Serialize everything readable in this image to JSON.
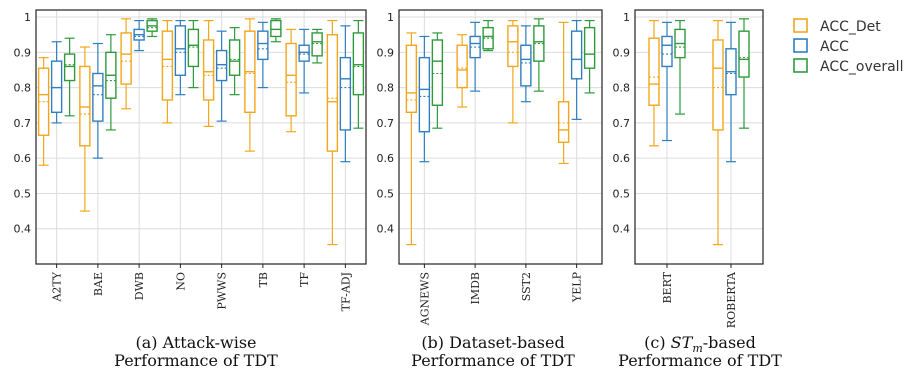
{
  "colors": {
    "ACC_Det": "#f2a71b",
    "ACC": "#2f7fc1",
    "ACC_overall": "#2e9a3b"
  },
  "legend": [
    "ACC_Det",
    "ACC",
    "ACC_overall"
  ],
  "chart_data": [
    {
      "type": "boxplot",
      "ylim": [
        0.3,
        1.02
      ],
      "yticks": [
        0.4,
        0.5,
        0.6,
        0.7,
        0.8,
        0.9,
        1
      ],
      "caption_line1": "(a) Attack-wise",
      "caption_line2": "Performance of TDT",
      "categories": [
        "A2TY",
        "BAE",
        "DWB",
        "NO",
        "PWWS",
        "TB",
        "TF",
        "TF-ADJ"
      ],
      "series": [
        {
          "name": "ACC_Det",
          "boxes": [
            {
              "min": 0.58,
              "q1": 0.665,
              "median": 0.78,
              "q3": 0.855,
              "max": 0.885,
              "mean": 0.76
            },
            {
              "min": 0.45,
              "q1": 0.635,
              "median": 0.745,
              "q3": 0.86,
              "max": 0.915,
              "mean": 0.725
            },
            {
              "min": 0.74,
              "q1": 0.81,
              "median": 0.895,
              "q3": 0.955,
              "max": 0.995,
              "mean": 0.875
            },
            {
              "min": 0.7,
              "q1": 0.765,
              "median": 0.88,
              "q3": 0.96,
              "max": 0.99,
              "mean": 0.86
            },
            {
              "min": 0.69,
              "q1": 0.765,
              "median": 0.845,
              "q3": 0.935,
              "max": 0.99,
              "mean": 0.835
            },
            {
              "min": 0.62,
              "q1": 0.73,
              "median": 0.845,
              "q3": 0.96,
              "max": 0.995,
              "mean": 0.84
            },
            {
              "min": 0.675,
              "q1": 0.72,
              "median": 0.835,
              "q3": 0.925,
              "max": 0.965,
              "mean": 0.815
            },
            {
              "min": 0.355,
              "q1": 0.62,
              "median": 0.76,
              "q3": 0.95,
              "max": 0.99,
              "mean": 0.77
            }
          ]
        },
        {
          "name": "ACC",
          "boxes": [
            {
              "min": 0.7,
              "q1": 0.73,
              "median": 0.8,
              "q3": 0.875,
              "max": 0.93,
              "mean": 0.8
            },
            {
              "min": 0.6,
              "q1": 0.705,
              "median": 0.805,
              "q3": 0.84,
              "max": 0.925,
              "mean": 0.78
            },
            {
              "min": 0.905,
              "q1": 0.935,
              "median": 0.95,
              "q3": 0.965,
              "max": 0.99,
              "mean": 0.945
            },
            {
              "min": 0.78,
              "q1": 0.835,
              "median": 0.91,
              "q3": 0.975,
              "max": 0.99,
              "mean": 0.9
            },
            {
              "min": 0.705,
              "q1": 0.82,
              "median": 0.865,
              "q3": 0.905,
              "max": 0.96,
              "mean": 0.855
            },
            {
              "min": 0.8,
              "q1": 0.88,
              "median": 0.925,
              "q3": 0.96,
              "max": 0.985,
              "mean": 0.91
            },
            {
              "min": 0.785,
              "q1": 0.875,
              "median": 0.9,
              "q3": 0.92,
              "max": 0.965,
              "mean": 0.895
            },
            {
              "min": 0.59,
              "q1": 0.68,
              "median": 0.825,
              "q3": 0.885,
              "max": 0.975,
              "mean": 0.8
            }
          ]
        },
        {
          "name": "ACC_overall",
          "boxes": [
            {
              "min": 0.72,
              "q1": 0.82,
              "median": 0.86,
              "q3": 0.895,
              "max": 0.94,
              "mean": 0.865
            },
            {
              "min": 0.68,
              "q1": 0.77,
              "median": 0.835,
              "q3": 0.9,
              "max": 0.95,
              "mean": 0.82
            },
            {
              "min": 0.945,
              "q1": 0.96,
              "median": 0.975,
              "q3": 0.99,
              "max": 0.995,
              "mean": 0.97
            },
            {
              "min": 0.8,
              "q1": 0.86,
              "median": 0.92,
              "q3": 0.965,
              "max": 0.99,
              "mean": 0.915
            },
            {
              "min": 0.78,
              "q1": 0.835,
              "median": 0.875,
              "q3": 0.935,
              "max": 0.97,
              "mean": 0.88
            },
            {
              "min": 0.93,
              "q1": 0.945,
              "median": 0.965,
              "q3": 0.99,
              "max": 0.995,
              "mean": 0.965
            },
            {
              "min": 0.87,
              "q1": 0.89,
              "median": 0.93,
              "q3": 0.955,
              "max": 0.965,
              "mean": 0.925
            },
            {
              "min": 0.685,
              "q1": 0.78,
              "median": 0.865,
              "q3": 0.955,
              "max": 0.99,
              "mean": 0.86
            }
          ]
        }
      ]
    },
    {
      "type": "boxplot",
      "ylim": [
        0.3,
        1.02
      ],
      "yticks": [
        0.4,
        0.5,
        0.6,
        0.7,
        0.8,
        0.9,
        1
      ],
      "caption_line1": "(b) Dataset-based",
      "caption_line2": "Performance of TDT",
      "categories": [
        "AGNEWS",
        "IMDB",
        "SST2",
        "YELP"
      ],
      "series": [
        {
          "name": "ACC_Det",
          "boxes": [
            {
              "min": 0.355,
              "q1": 0.73,
              "median": 0.785,
              "q3": 0.92,
              "max": 0.955,
              "mean": 0.765
            },
            {
              "min": 0.745,
              "q1": 0.8,
              "median": 0.85,
              "q3": 0.92,
              "max": 0.95,
              "mean": 0.855
            },
            {
              "min": 0.7,
              "q1": 0.86,
              "median": 0.93,
              "q3": 0.975,
              "max": 0.99,
              "mean": 0.9
            },
            {
              "min": 0.585,
              "q1": 0.645,
              "median": 0.68,
              "q3": 0.76,
              "max": 0.985,
              "mean": 0.7
            }
          ]
        },
        {
          "name": "ACC",
          "boxes": [
            {
              "min": 0.59,
              "q1": 0.675,
              "median": 0.795,
              "q3": 0.885,
              "max": 0.945,
              "mean": 0.775
            },
            {
              "min": 0.79,
              "q1": 0.885,
              "median": 0.925,
              "q3": 0.945,
              "max": 0.985,
              "mean": 0.915
            },
            {
              "min": 0.76,
              "q1": 0.805,
              "median": 0.88,
              "q3": 0.92,
              "max": 0.975,
              "mean": 0.87
            },
            {
              "min": 0.71,
              "q1": 0.825,
              "median": 0.88,
              "q3": 0.96,
              "max": 0.99,
              "mean": 0.88
            }
          ]
        },
        {
          "name": "ACC_overall",
          "boxes": [
            {
              "min": 0.685,
              "q1": 0.75,
              "median": 0.875,
              "q3": 0.935,
              "max": 0.955,
              "mean": 0.84
            },
            {
              "min": 0.905,
              "q1": 0.91,
              "median": 0.945,
              "q3": 0.97,
              "max": 0.99,
              "mean": 0.94
            },
            {
              "min": 0.79,
              "q1": 0.875,
              "median": 0.93,
              "q3": 0.975,
              "max": 0.995,
              "mean": 0.925
            },
            {
              "min": 0.785,
              "q1": 0.855,
              "median": 0.895,
              "q3": 0.97,
              "max": 0.99,
              "mean": 0.895
            }
          ]
        }
      ]
    },
    {
      "type": "boxplot",
      "ylim": [
        0.3,
        1.02
      ],
      "yticks": [
        0.4,
        0.5,
        0.6,
        0.7,
        0.8,
        0.9,
        1
      ],
      "caption_line1": "(c) ST_m-based",
      "caption_line2": "Performance of TDT",
      "categories": [
        "BERT",
        "ROBERTA"
      ],
      "series": [
        {
          "name": "ACC_Det",
          "boxes": [
            {
              "min": 0.635,
              "q1": 0.75,
              "median": 0.81,
              "q3": 0.94,
              "max": 0.99,
              "mean": 0.83
            },
            {
              "min": 0.355,
              "q1": 0.68,
              "median": 0.855,
              "q3": 0.935,
              "max": 0.99,
              "mean": 0.8
            }
          ]
        },
        {
          "name": "ACC",
          "boxes": [
            {
              "min": 0.65,
              "q1": 0.86,
              "median": 0.92,
              "q3": 0.945,
              "max": 0.985,
              "mean": 0.895
            },
            {
              "min": 0.59,
              "q1": 0.78,
              "median": 0.845,
              "q3": 0.91,
              "max": 0.985,
              "mean": 0.84
            }
          ]
        },
        {
          "name": "ACC_overall",
          "boxes": [
            {
              "min": 0.725,
              "q1": 0.885,
              "median": 0.925,
              "q3": 0.965,
              "max": 0.99,
              "mean": 0.915
            },
            {
              "min": 0.685,
              "q1": 0.83,
              "median": 0.88,
              "q3": 0.96,
              "max": 0.995,
              "mean": 0.885
            }
          ]
        }
      ]
    }
  ]
}
